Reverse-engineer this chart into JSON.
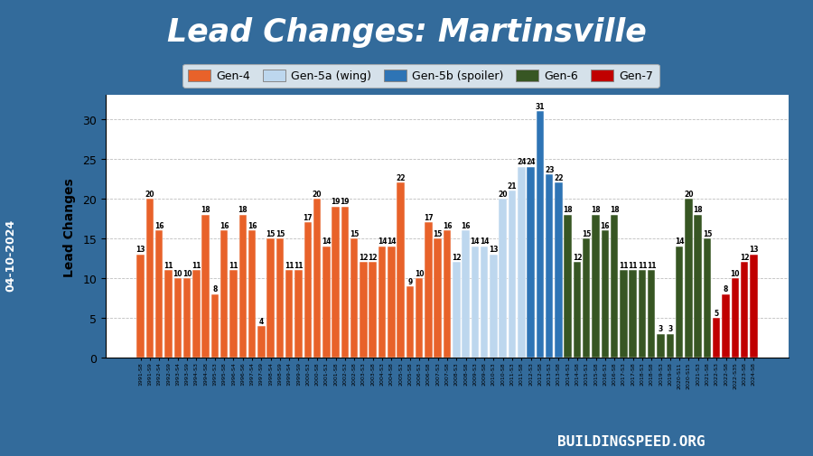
{
  "title": "Lead Changes: Martinsville",
  "ylabel": "Lead Changes",
  "title_bg": "#CC2222",
  "outer_bg": "#336B9B",
  "inner_bg": "#FFFFFF",
  "title_color": "#FFFFFF",
  "bars": [
    {
      "label": "1991-S8",
      "value": 13,
      "gen": "Gen-4"
    },
    {
      "label": "1991-S9",
      "value": 20,
      "gen": "Gen-4"
    },
    {
      "label": "1992-S4",
      "value": 16,
      "gen": "Gen-4"
    },
    {
      "label": "1992-S9",
      "value": 11,
      "gen": "Gen-4"
    },
    {
      "label": "1993-S4",
      "value": 10,
      "gen": "Gen-4"
    },
    {
      "label": "1993-S9",
      "value": 10,
      "gen": "Gen-4"
    },
    {
      "label": "1994-S3",
      "value": 11,
      "gen": "Gen-4"
    },
    {
      "label": "1994-S8",
      "value": 18,
      "gen": "Gen-4"
    },
    {
      "label": "1995-S3",
      "value": 8,
      "gen": "Gen-4"
    },
    {
      "label": "1995-S8",
      "value": 16,
      "gen": "Gen-4"
    },
    {
      "label": "1996-S4",
      "value": 11,
      "gen": "Gen-4"
    },
    {
      "label": "1996-S6",
      "value": 18,
      "gen": "Gen-4"
    },
    {
      "label": "1997-S4",
      "value": 16,
      "gen": "Gen-4"
    },
    {
      "label": "1997-S9",
      "value": 4,
      "gen": "Gen-4"
    },
    {
      "label": "1998-S4",
      "value": 15,
      "gen": "Gen-4"
    },
    {
      "label": "1998-S9",
      "value": 15,
      "gen": "Gen-4"
    },
    {
      "label": "1999-S4",
      "value": 11,
      "gen": "Gen-4"
    },
    {
      "label": "1999-S9",
      "value": 11,
      "gen": "Gen-4"
    },
    {
      "label": "2000-S3",
      "value": 17,
      "gen": "Gen-4"
    },
    {
      "label": "2000-S8",
      "value": 20,
      "gen": "Gen-4"
    },
    {
      "label": "2001-S3",
      "value": 14,
      "gen": "Gen-4"
    },
    {
      "label": "2001-S8",
      "value": 19,
      "gen": "Gen-4"
    },
    {
      "label": "2002-S3",
      "value": 19,
      "gen": "Gen-4"
    },
    {
      "label": "2002-S8",
      "value": 15,
      "gen": "Gen-4"
    },
    {
      "label": "2003-S3",
      "value": 12,
      "gen": "Gen-4"
    },
    {
      "label": "2003-S8",
      "value": 12,
      "gen": "Gen-4"
    },
    {
      "label": "2004-S3",
      "value": 14,
      "gen": "Gen-4"
    },
    {
      "label": "2004-S8",
      "value": 14,
      "gen": "Gen-4"
    },
    {
      "label": "2005-S3",
      "value": 22,
      "gen": "Gen-4"
    },
    {
      "label": "2005-S8",
      "value": 9,
      "gen": "Gen-4"
    },
    {
      "label": "2006-S3",
      "value": 10,
      "gen": "Gen-4"
    },
    {
      "label": "2006-S8",
      "value": 17,
      "gen": "Gen-4"
    },
    {
      "label": "2007-S3",
      "value": 15,
      "gen": "Gen-4"
    },
    {
      "label": "2007-S8",
      "value": 16,
      "gen": "Gen-4"
    },
    {
      "label": "2008-S3",
      "value": 12,
      "gen": "Gen-5a"
    },
    {
      "label": "2008-S8",
      "value": 16,
      "gen": "Gen-5a"
    },
    {
      "label": "2009-S3",
      "value": 14,
      "gen": "Gen-5a"
    },
    {
      "label": "2009-S8",
      "value": 14,
      "gen": "Gen-5a"
    },
    {
      "label": "2010-S3",
      "value": 13,
      "gen": "Gen-5a"
    },
    {
      "label": "2010-S8",
      "value": 20,
      "gen": "Gen-5a"
    },
    {
      "label": "2011-S3",
      "value": 21,
      "gen": "Gen-5a"
    },
    {
      "label": "2011-S8",
      "value": 24,
      "gen": "Gen-5a"
    },
    {
      "label": "2012-S3",
      "value": 24,
      "gen": "Gen-5b"
    },
    {
      "label": "2012-S8",
      "value": 31,
      "gen": "Gen-5b"
    },
    {
      "label": "2013-S3",
      "value": 23,
      "gen": "Gen-5b"
    },
    {
      "label": "2013-S8",
      "value": 22,
      "gen": "Gen-5b"
    },
    {
      "label": "2014-S3",
      "value": 18,
      "gen": "Gen-6"
    },
    {
      "label": "2014-S8",
      "value": 12,
      "gen": "Gen-6"
    },
    {
      "label": "2015-S3",
      "value": 15,
      "gen": "Gen-6"
    },
    {
      "label": "2015-S8",
      "value": 18,
      "gen": "Gen-6"
    },
    {
      "label": "2016-S3",
      "value": 16,
      "gen": "Gen-6"
    },
    {
      "label": "2016-S8",
      "value": 18,
      "gen": "Gen-6"
    },
    {
      "label": "2017-S3",
      "value": 11,
      "gen": "Gen-6"
    },
    {
      "label": "2017-S8",
      "value": 11,
      "gen": "Gen-6"
    },
    {
      "label": "2018-S3",
      "value": 11,
      "gen": "Gen-6"
    },
    {
      "label": "2018-S8",
      "value": 11,
      "gen": "Gen-6"
    },
    {
      "label": "2019-S3",
      "value": 3,
      "gen": "Gen-6"
    },
    {
      "label": "2019-S8",
      "value": 3,
      "gen": "Gen-6"
    },
    {
      "label": "2020-S11",
      "value": 14,
      "gen": "Gen-6"
    },
    {
      "label": "2020-S15",
      "value": 20,
      "gen": "Gen-6"
    },
    {
      "label": "2021-S3",
      "value": 18,
      "gen": "Gen-6"
    },
    {
      "label": "2021-S8",
      "value": 15,
      "gen": "Gen-6"
    },
    {
      "label": "2022-S3",
      "value": 5,
      "gen": "Gen-7"
    },
    {
      "label": "2022-S8",
      "value": 8,
      "gen": "Gen-7"
    },
    {
      "label": "2022-S35",
      "value": 10,
      "gen": "Gen-7"
    },
    {
      "label": "2023-S8",
      "value": 12,
      "gen": "Gen-7"
    },
    {
      "label": "2024-S8",
      "value": 13,
      "gen": "Gen-7"
    }
  ],
  "gen_colors": {
    "Gen-4": "#E8622A",
    "Gen-5a": "#BDD7EE",
    "Gen-5b": "#2E74B5",
    "Gen-6": "#375623",
    "Gen-7": "#C00000"
  },
  "legend_labels": [
    "Gen-4",
    "Gen-5a (wing)",
    "Gen-5b (spoiler)",
    "Gen-6",
    "Gen-7"
  ],
  "legend_keys": [
    "Gen-4",
    "Gen-5a",
    "Gen-5b",
    "Gen-6",
    "Gen-7"
  ],
  "ylim": [
    0,
    33
  ],
  "yticks": [
    0,
    5,
    10,
    15,
    20,
    25,
    30
  ],
  "date_label": "04-10-2024",
  "website": "BUILDINGSPEED.ORG"
}
